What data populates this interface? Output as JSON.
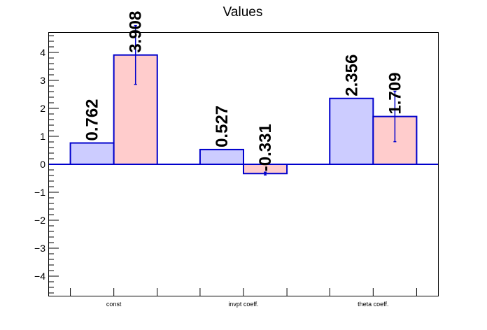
{
  "chart_data": {
    "type": "bar",
    "title": "Values",
    "xlabel": "",
    "ylabel": "",
    "categories": [
      "const",
      "invpt coeff.",
      "theta coeff."
    ],
    "ylim": [
      -4.7,
      4.7
    ],
    "yticks": [
      "−4",
      "−3",
      "−2",
      "−1",
      "0",
      "1",
      "2",
      "3",
      "4"
    ],
    "series": [
      {
        "values": [
          0.762,
          0.527,
          2.356
        ],
        "labels": [
          "0.762",
          "0.527",
          "2.356"
        ],
        "errors": [
          0,
          0,
          0
        ],
        "fill": "#ccccff"
      },
      {
        "values": [
          3.908,
          -0.331,
          1.709
        ],
        "labels": [
          "3.908",
          "-0.331",
          "1.709"
        ],
        "errors": [
          1.05,
          0.05,
          0.9
        ],
        "fill": "#ffcccc"
      }
    ],
    "outline_color": "#0000cc",
    "grid": false,
    "legend": "none"
  }
}
